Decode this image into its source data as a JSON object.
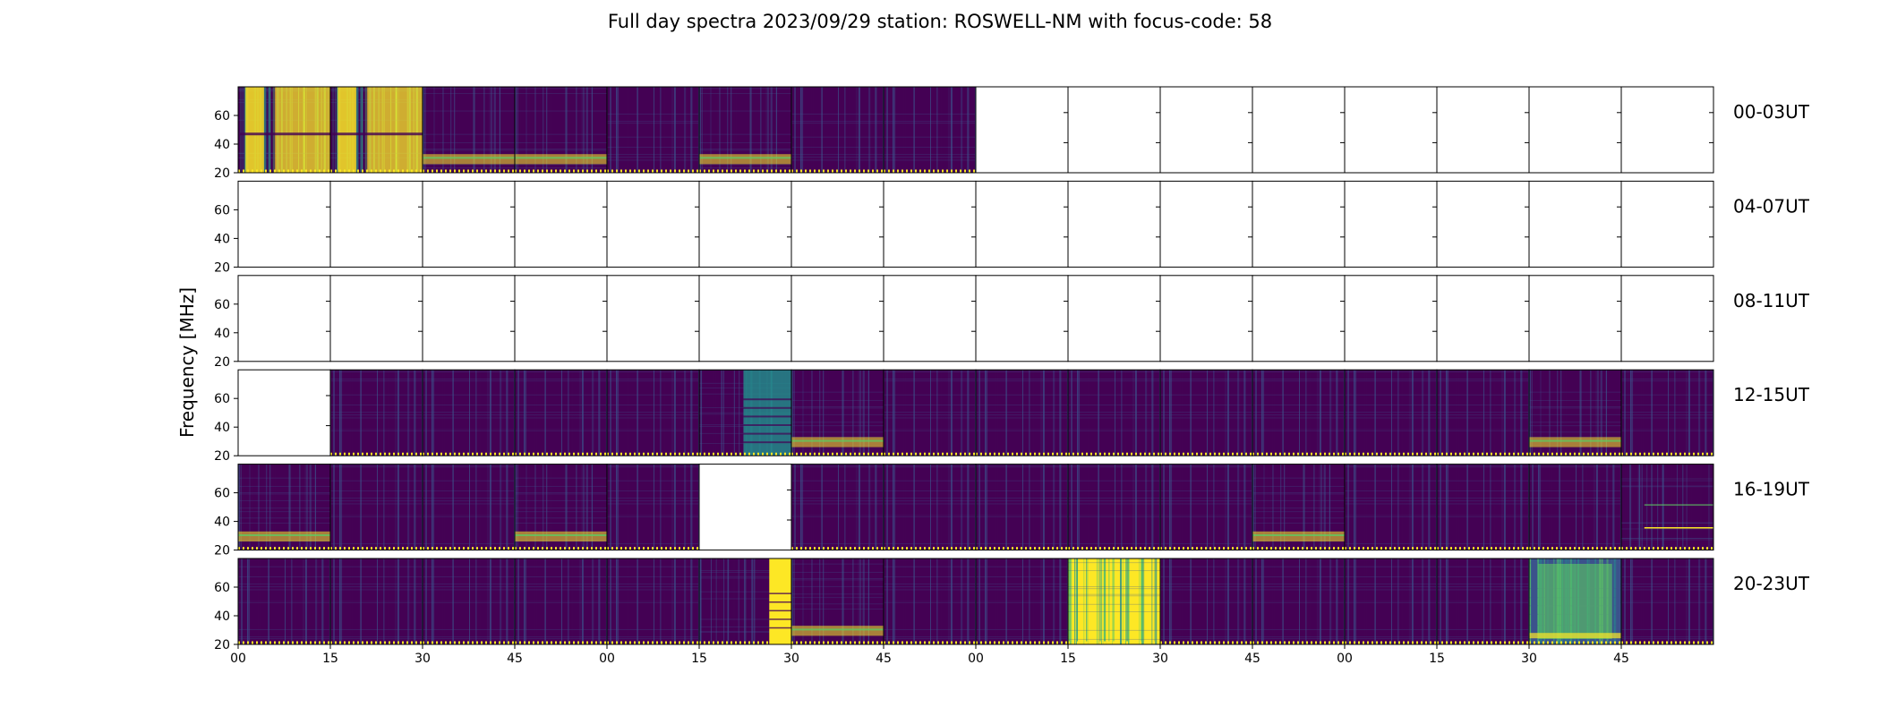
{
  "chart_data": {
    "type": "heatmap",
    "title": "Full day spectra 2023/09/29 station: ROSWELL-NM with focus-code: 58",
    "ylabel": "Frequency [MHz]",
    "xlabel": "",
    "y_ticks": [
      "20",
      "40",
      "60"
    ],
    "ylim": [
      20,
      80
    ],
    "x_ticks": [
      "00",
      "15",
      "30",
      "45",
      "00",
      "15",
      "30",
      "45",
      "00",
      "15",
      "30",
      "45",
      "00",
      "15",
      "30",
      "45"
    ],
    "segments_per_row": 16,
    "segment_minutes": 15,
    "colormap": [
      "#440154",
      "#3b528b",
      "#21918c",
      "#5ec962",
      "#fde725"
    ],
    "rows": [
      {
        "label": "00-03UT",
        "segments": [
          "very-hot",
          "very-hot",
          "band",
          "band",
          "quiet",
          "band",
          "quiet",
          "quiet",
          "empty",
          "empty",
          "empty",
          "empty",
          "empty",
          "empty",
          "empty",
          "empty"
        ]
      },
      {
        "label": "04-07UT",
        "segments": [
          "empty",
          "empty",
          "empty",
          "empty",
          "empty",
          "empty",
          "empty",
          "empty",
          "empty",
          "empty",
          "empty",
          "empty",
          "empty",
          "empty",
          "empty",
          "empty"
        ]
      },
      {
        "label": "08-11UT",
        "segments": [
          "empty",
          "empty",
          "empty",
          "empty",
          "empty",
          "empty",
          "empty",
          "empty",
          "empty",
          "empty",
          "empty",
          "empty",
          "empty",
          "empty",
          "empty",
          "empty"
        ]
      },
      {
        "label": "12-15UT",
        "segments": [
          "empty",
          "quiet",
          "quiet",
          "quiet",
          "quiet",
          "cyan-top",
          "band",
          "quiet",
          "quiet",
          "quiet",
          "quiet",
          "quiet",
          "quiet",
          "quiet",
          "band",
          "quiet"
        ]
      },
      {
        "label": "16-19UT",
        "segments": [
          "band",
          "quiet",
          "quiet",
          "band",
          "quiet",
          "empty",
          "quiet",
          "quiet",
          "quiet",
          "quiet",
          "quiet",
          "band",
          "quiet",
          "quiet",
          "quiet",
          "line"
        ]
      },
      {
        "label": "20-23UT",
        "segments": [
          "quiet",
          "quiet",
          "quiet",
          "quiet",
          "quiet",
          "yellow-right",
          "band",
          "quiet",
          "quiet",
          "hot",
          "quiet",
          "quiet",
          "quiet",
          "quiet",
          "green",
          "quiet"
        ]
      }
    ]
  }
}
